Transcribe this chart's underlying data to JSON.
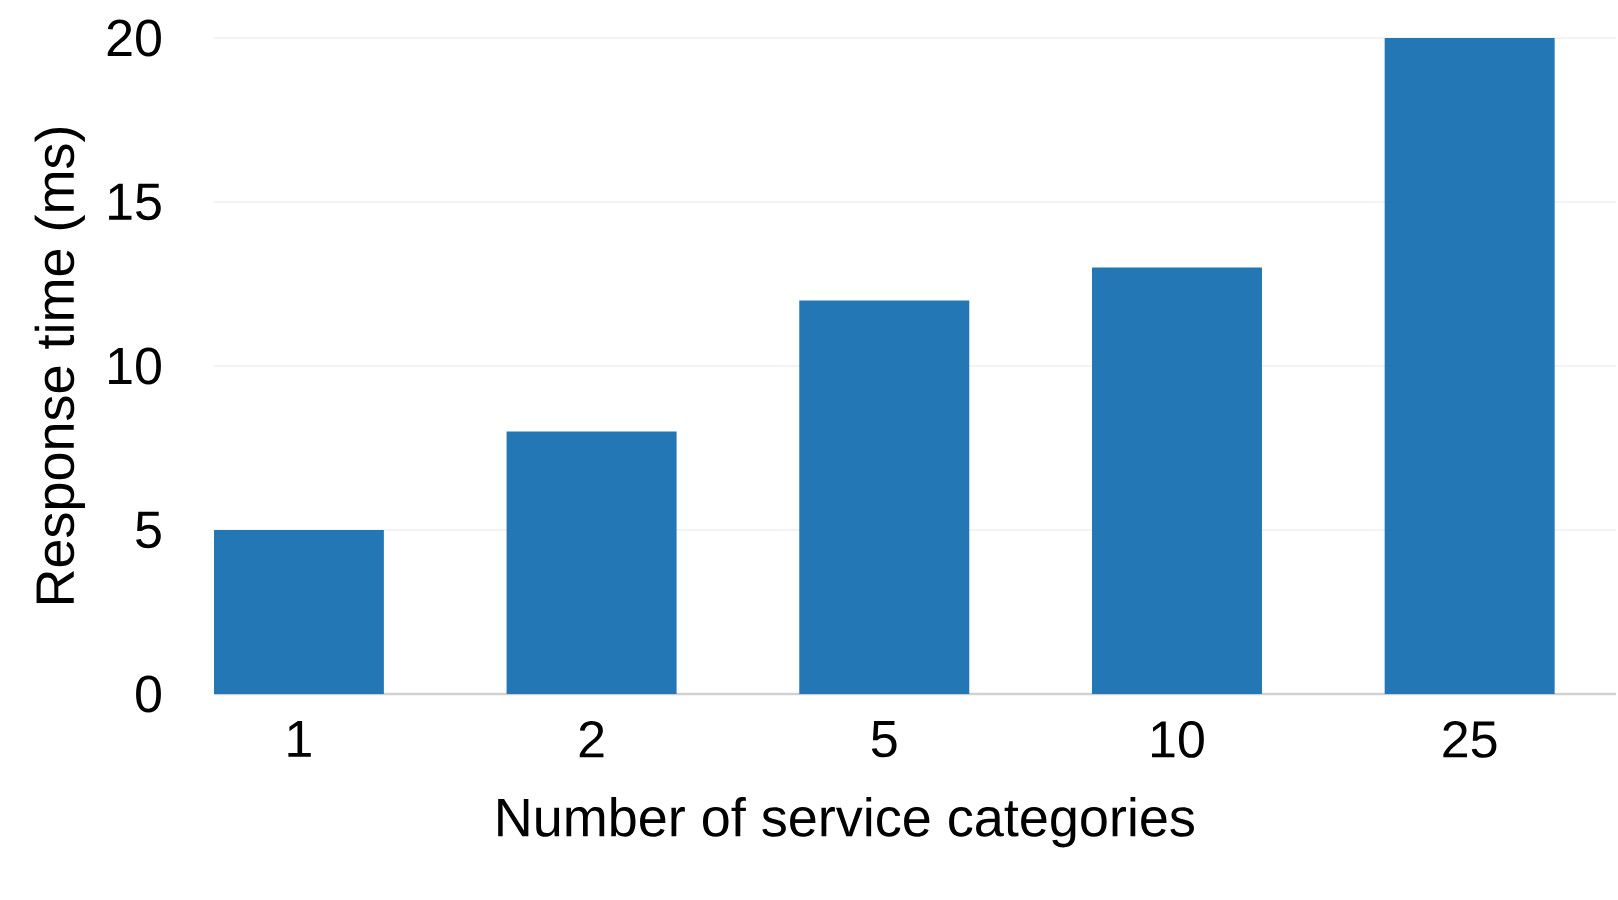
{
  "chart_data": {
    "type": "bar",
    "xlabel": "Number of service categories",
    "ylabel": "Response time (ms)",
    "categories": [
      "1",
      "2",
      "5",
      "10",
      "25"
    ],
    "values": [
      5,
      8,
      12,
      13,
      20
    ],
    "color": "#2277b4",
    "ylim": [
      0,
      20
    ],
    "yticks": [
      0,
      5,
      10,
      15,
      20
    ],
    "grid": "y"
  }
}
